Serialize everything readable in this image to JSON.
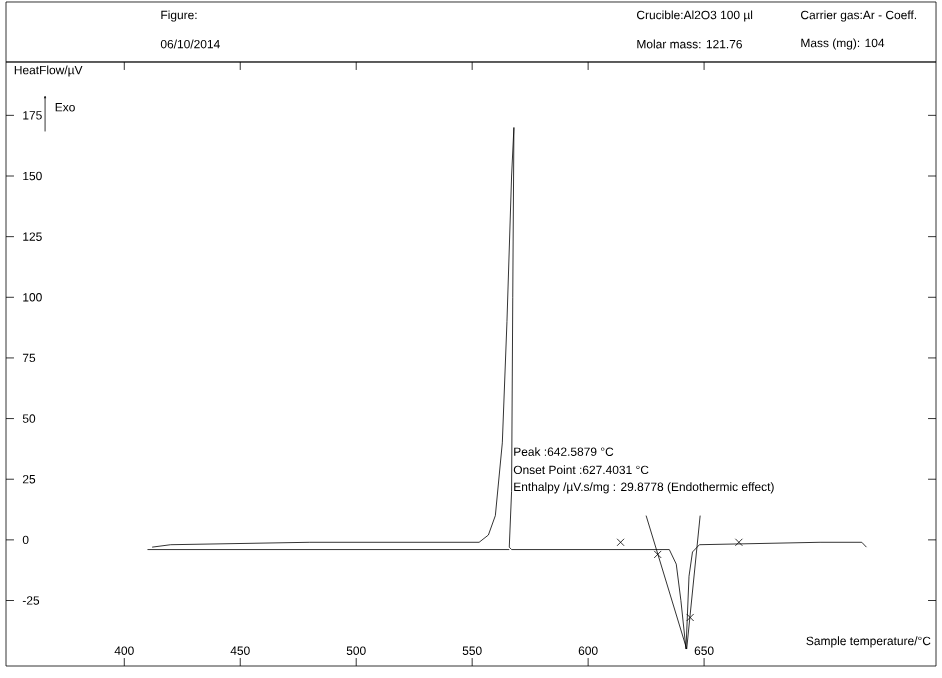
{
  "chart_data": {
    "type": "line",
    "xlabel": "Sample temperature/°C",
    "ylabel": "HeatFlow/µV",
    "xlim": [
      349,
      750
    ],
    "ylim": [
      -52,
      197
    ],
    "xticks": [
      400,
      450,
      500,
      550,
      600,
      650
    ],
    "yticks": [
      -25,
      0,
      25,
      50,
      75,
      100,
      125,
      150,
      175
    ],
    "series": [
      {
        "color": "#000000",
        "x": [
          412,
          420,
          480,
          553,
          557,
          560,
          563,
          565,
          567,
          568,
          567.5,
          567,
          566,
          567,
          600,
          635,
          638,
          640,
          642.2,
          643.5,
          645,
          648,
          700,
          718,
          720
        ],
        "values": [
          -3,
          -2,
          -1,
          -1,
          2,
          10,
          40,
          90,
          150,
          170,
          100,
          20,
          -3,
          -4,
          -4,
          -4,
          -10,
          -25,
          -45,
          -15,
          -5,
          -2,
          -1,
          -1,
          -3
        ]
      },
      {
        "color": "#000000",
        "x": [
          410,
          480,
          560,
          566
        ],
        "values": [
          -4,
          -4,
          -4,
          -4
        ]
      },
      {
        "color": "#000000",
        "x": [
          625,
          642.5
        ],
        "values": [
          10,
          -45
        ]
      },
      {
        "color": "#000000",
        "x": [
          648.3,
          642.5
        ],
        "values": [
          10,
          -45
        ]
      },
      {
        "color": "#000000",
        "type": "scatter",
        "marker": "cross",
        "x": [
          614,
          630,
          644,
          665
        ],
        "values": [
          -1,
          -6,
          -32,
          -1
        ]
      }
    ],
    "annotations": [
      "Peak :642.5879 °C",
      "Onset Point :627.4031 °C",
      "Enthalpy /µV.s/mg : 29.8778 (Endothermic effect)",
      "Exo",
      "Figure:",
      "06/10/2014",
      "Crucible:Al2O3 100 µl",
      "Molar mass: 121.76",
      "Carrier gas:Ar - Coeff.",
      "Mass (mg): 104"
    ],
    "grid": false
  }
}
